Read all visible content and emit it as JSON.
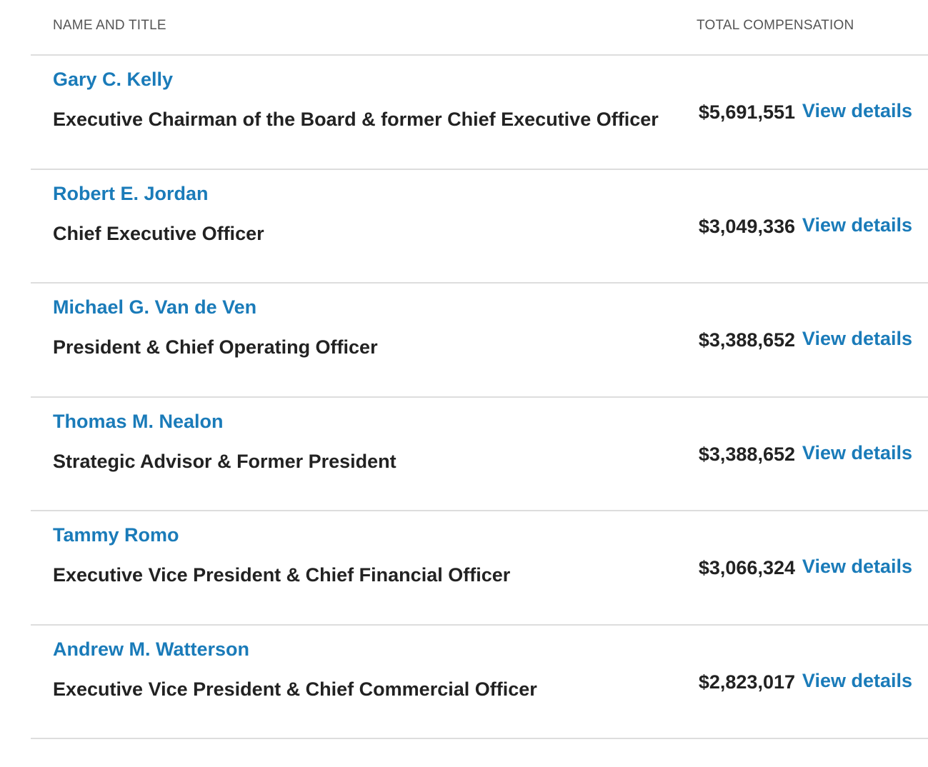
{
  "header": {
    "name_title_label": "NAME AND TITLE",
    "total_comp_label": "TOTAL COMPENSATION"
  },
  "rows": [
    {
      "name": "Gary C. Kelly",
      "title": "Executive Chairman of the Board & former Chief Executive Officer",
      "compensation": "$5,691,551",
      "link": "View details"
    },
    {
      "name": "Robert E. Jordan",
      "title": "Chief Executive Officer",
      "compensation": "$3,049,336",
      "link": "View details"
    },
    {
      "name": "Michael G. Van de Ven",
      "title": "President & Chief Operating Officer",
      "compensation": "$3,388,652",
      "link": "View details"
    },
    {
      "name": "Thomas M. Nealon",
      "title": "Strategic Advisor & Former President",
      "compensation": "$3,388,652",
      "link": "View details"
    },
    {
      "name": "Tammy Romo",
      "title": "Executive Vice President & Chief Financial Officer",
      "compensation": "$3,066,324",
      "link": "View details"
    },
    {
      "name": "Andrew M. Watterson",
      "title": "Executive Vice President & Chief Commercial Officer",
      "compensation": "$2,823,017",
      "link": "View details"
    }
  ],
  "colors": {
    "link": "#1a7bb9",
    "text": "#222222",
    "header_text": "#555555",
    "divider": "#dddddd"
  }
}
